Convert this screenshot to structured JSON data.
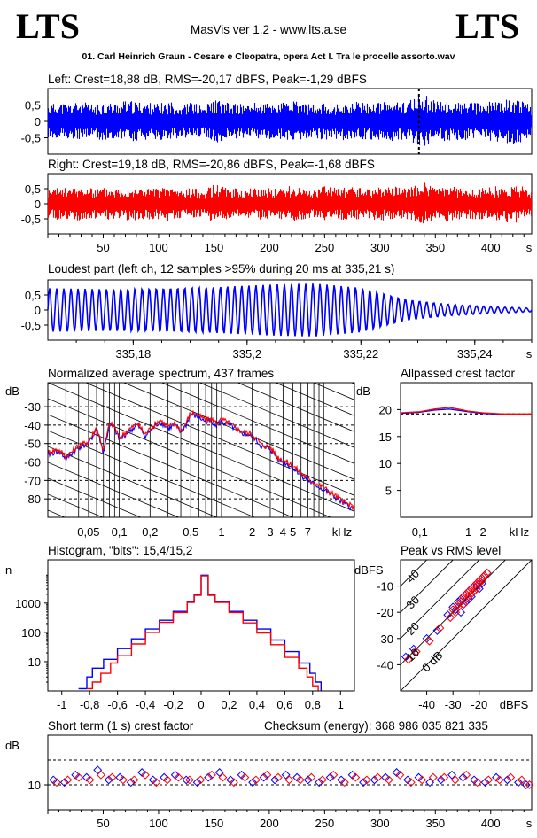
{
  "header": {
    "logo_left": "LTS",
    "logo_right": "LTS",
    "app_title": "MasVis ver 1.2 - www.lts.a.se",
    "file_title": "01. Carl Heinrich Graun - Cesare e Cleopatra, opera Act I. Tra le procelle assorto.wav"
  },
  "colors": {
    "left": "#0000ff",
    "right": "#ff0000"
  },
  "chart_data": [
    {
      "id": "left-waveform",
      "type": "area",
      "title": "Left: Crest=18,88 dB, RMS=-20,17 dBFS, Peak=-1,29 dBFS",
      "yticks": [
        "0,5",
        "0",
        "-0,5"
      ],
      "ylim": [
        -1,
        1
      ],
      "xlim": [
        0,
        437
      ],
      "marker_x": 335.21,
      "envelope": {
        "x": [
          0,
          10,
          20,
          30,
          40,
          50,
          60,
          70,
          80,
          90,
          100,
          110,
          120,
          130,
          140,
          150,
          160,
          170,
          180,
          190,
          200,
          210,
          220,
          230,
          240,
          250,
          260,
          270,
          280,
          290,
          300,
          310,
          320,
          330,
          340,
          350,
          360,
          370,
          380,
          390,
          400,
          410,
          420,
          430,
          437
        ],
        "peak": [
          0.52,
          0.58,
          0.55,
          0.62,
          0.5,
          0.6,
          0.56,
          0.65,
          0.6,
          0.58,
          0.55,
          0.62,
          0.5,
          0.6,
          0.45,
          0.7,
          0.58,
          0.55,
          0.52,
          0.6,
          0.55,
          0.58,
          0.62,
          0.6,
          0.5,
          0.62,
          0.55,
          0.58,
          0.6,
          0.56,
          0.58,
          0.62,
          0.6,
          0.7,
          0.85,
          0.6,
          0.62,
          0.58,
          0.6,
          0.55,
          0.62,
          0.65,
          0.72,
          0.6,
          0.45
        ]
      }
    },
    {
      "id": "right-waveform",
      "type": "area",
      "title": "Right: Crest=19,18 dB, RMS=-20,86 dBFS, Peak=-1,68 dBFS",
      "yticks": [
        "0,5",
        "0",
        "-0,5"
      ],
      "ylim": [
        -1,
        1
      ],
      "xlim": [
        0,
        437
      ],
      "xticks": [
        "50",
        "100",
        "150",
        "200",
        "250",
        "300",
        "350",
        "400"
      ],
      "xunit": "s",
      "envelope": {
        "x": [
          0,
          10,
          20,
          30,
          40,
          50,
          60,
          70,
          80,
          90,
          100,
          110,
          120,
          130,
          140,
          150,
          160,
          170,
          180,
          190,
          200,
          210,
          220,
          230,
          240,
          250,
          260,
          270,
          280,
          290,
          300,
          310,
          320,
          330,
          340,
          350,
          360,
          370,
          380,
          390,
          400,
          410,
          420,
          430,
          437
        ],
        "peak": [
          0.48,
          0.55,
          0.52,
          0.58,
          0.5,
          0.56,
          0.54,
          0.6,
          0.58,
          0.55,
          0.52,
          0.58,
          0.48,
          0.55,
          0.42,
          0.68,
          0.55,
          0.52,
          0.5,
          0.56,
          0.52,
          0.55,
          0.6,
          0.56,
          0.48,
          0.6,
          0.52,
          0.55,
          0.56,
          0.52,
          0.55,
          0.58,
          0.56,
          0.62,
          0.7,
          0.56,
          0.58,
          0.55,
          0.56,
          0.52,
          0.58,
          0.6,
          0.66,
          0.56,
          0.42
        ]
      }
    },
    {
      "id": "loudest-part",
      "type": "line",
      "title": "Loudest part (left  ch, 12 samples >95% during 20 ms at 335,21 s)",
      "yticks": [
        "0,5",
        "0",
        "-0,5"
      ],
      "ylim": [
        -1,
        1
      ],
      "xlim": [
        335.165,
        335.25
      ],
      "xticks": [
        "335,18",
        "335,2",
        "335,22",
        "335,24"
      ],
      "xunit": "s",
      "cycles": 68,
      "amplitude": {
        "x": [
          335.165,
          335.175,
          335.185,
          335.195,
          335.205,
          335.212,
          335.22,
          335.228,
          335.235,
          335.242,
          335.25
        ],
        "y": [
          0.72,
          0.7,
          0.74,
          0.78,
          0.85,
          0.88,
          0.75,
          0.35,
          0.2,
          0.12,
          0.06
        ]
      }
    },
    {
      "id": "avg-spectrum",
      "type": "line",
      "title": "Normalized average spectrum, 437 frames",
      "ylabel": "dB",
      "yticks": [
        "-30",
        "-40",
        "-50",
        "-60",
        "-70",
        "-80"
      ],
      "ylim": [
        -90,
        -17
      ],
      "xscale": "log",
      "xlim": [
        0.02,
        20
      ],
      "xticks": [
        "0,05",
        "0,1",
        "0,2",
        "0,5",
        "1",
        "2",
        "3",
        "4",
        "5",
        "7"
      ],
      "xunit": "kHz",
      "series": [
        {
          "color": "#0000ff",
          "x": [
            0.02,
            0.025,
            0.03,
            0.035,
            0.04,
            0.05,
            0.06,
            0.07,
            0.08,
            0.09,
            0.1,
            0.12,
            0.15,
            0.18,
            0.2,
            0.25,
            0.3,
            0.35,
            0.4,
            0.45,
            0.5,
            0.6,
            0.7,
            0.8,
            0.9,
            1.0,
            1.2,
            1.5,
            2.0,
            2.5,
            3.0,
            3.5,
            4.0,
            5.0,
            6.0,
            7.0,
            8.0,
            10.0,
            12.0,
            15.0,
            20.0
          ],
          "y": [
            -56,
            -54,
            -58,
            -55,
            -52,
            -50,
            -42,
            -55,
            -40,
            -42,
            -48,
            -44,
            -40,
            -46,
            -43,
            -38,
            -42,
            -40,
            -44,
            -40,
            -34,
            -36,
            -38,
            -38,
            -40,
            -38,
            -40,
            -44,
            -46,
            -52,
            -53,
            -58,
            -60,
            -63,
            -67,
            -70,
            -72,
            -75,
            -78,
            -82,
            -86
          ]
        },
        {
          "color": "#ff0000",
          "x": [
            0.02,
            0.025,
            0.03,
            0.035,
            0.04,
            0.05,
            0.06,
            0.07,
            0.08,
            0.09,
            0.1,
            0.12,
            0.15,
            0.18,
            0.2,
            0.25,
            0.3,
            0.35,
            0.4,
            0.45,
            0.5,
            0.6,
            0.7,
            0.8,
            0.9,
            1.0,
            1.2,
            1.5,
            2.0,
            2.5,
            3.0,
            3.5,
            4.0,
            5.0,
            6.0,
            7.0,
            8.0,
            10.0,
            12.0,
            15.0,
            20.0
          ],
          "y": [
            -55,
            -53,
            -57,
            -54,
            -51,
            -49,
            -41,
            -54,
            -39,
            -41,
            -47,
            -43,
            -39,
            -45,
            -42,
            -37,
            -41,
            -39,
            -43,
            -39,
            -33,
            -35,
            -37,
            -37,
            -39,
            -37,
            -39,
            -43,
            -45,
            -51,
            -52,
            -57,
            -59,
            -62,
            -66,
            -69,
            -71,
            -74,
            -77,
            -81,
            -85
          ]
        }
      ]
    },
    {
      "id": "allpassed-crest",
      "type": "line",
      "title": "Allpassed crest factor",
      "ylabel": "dB",
      "yticks": [
        "20",
        "15",
        "10",
        "5"
      ],
      "ylim": [
        0,
        25
      ],
      "xscale": "log",
      "xlim": [
        0.04,
        20
      ],
      "xticks": [
        "0,1",
        "1",
        "2",
        "kHz"
      ],
      "reference": 19.2,
      "series": [
        {
          "color": "#0000ff",
          "x": [
            0.04,
            0.1,
            0.2,
            0.4,
            0.7,
            1,
            2,
            5,
            10,
            20
          ],
          "y": [
            19.3,
            19.5,
            19.9,
            20.1,
            19.8,
            19.6,
            19.3,
            19.1,
            19.1,
            19.1
          ]
        },
        {
          "color": "#ff0000",
          "x": [
            0.04,
            0.1,
            0.2,
            0.4,
            0.7,
            1,
            2,
            5,
            10,
            20
          ],
          "y": [
            19.4,
            19.6,
            20.1,
            20.4,
            20.0,
            19.7,
            19.4,
            19.2,
            19.2,
            19.2
          ]
        }
      ]
    },
    {
      "id": "histogram",
      "type": "line",
      "title": "Histogram, \"bits\": 15,4/15,2",
      "ylabel": "n",
      "yscale": "log",
      "yticks": [
        "1000",
        "100",
        "10"
      ],
      "ylim": [
        1,
        30000
      ],
      "xlim": [
        -1.1,
        1.1
      ],
      "xticks": [
        "-1",
        "-0,8",
        "-0,6",
        "-0,4",
        "-0,2",
        "0",
        "0,2",
        "0,4",
        "0,6",
        "0,8",
        "1"
      ],
      "series": [
        {
          "color": "#0000ff",
          "x": [
            -0.88,
            -0.82,
            -0.78,
            -0.7,
            -0.6,
            -0.5,
            -0.4,
            -0.3,
            -0.2,
            -0.1,
            -0.05,
            0,
            0.05,
            0.1,
            0.2,
            0.3,
            0.4,
            0.5,
            0.6,
            0.7,
            0.78,
            0.82,
            0.86
          ],
          "y": [
            1.2,
            3,
            6,
            12,
            28,
            60,
            130,
            260,
            520,
            1100,
            1900,
            9000,
            1900,
            1100,
            520,
            260,
            130,
            55,
            22,
            9,
            4,
            2,
            1.2
          ]
        },
        {
          "color": "#ff0000",
          "x": [
            -0.82,
            -0.78,
            -0.72,
            -0.65,
            -0.6,
            -0.5,
            -0.4,
            -0.3,
            -0.2,
            -0.1,
            -0.05,
            0,
            0.05,
            0.1,
            0.2,
            0.3,
            0.4,
            0.5,
            0.6,
            0.7,
            0.76,
            0.8,
            0.84
          ],
          "y": [
            1.2,
            2,
            4,
            9,
            16,
            40,
            100,
            220,
            480,
            1050,
            1850,
            8500,
            1850,
            1050,
            480,
            210,
            95,
            38,
            14,
            6,
            3,
            1.5,
            1.2
          ]
        }
      ]
    },
    {
      "id": "peak-vs-rms",
      "type": "scatter",
      "title": "Peak vs RMS level",
      "ylabel": "dBFS",
      "xlabel": "dBFS",
      "yticks": [
        "-10",
        "-20",
        "-30",
        "-40"
      ],
      "xticks": [
        "-40",
        "-30",
        "-20"
      ],
      "xlim": [
        -50,
        0
      ],
      "ylim": [
        -50,
        0
      ],
      "diagonal_labels": [
        "40",
        "30",
        "20",
        "10",
        "0 dB"
      ],
      "series": [
        {
          "color": "#0000ff",
          "x": [
            -48,
            -45,
            -40,
            -36,
            -32,
            -30,
            -29,
            -28,
            -27,
            -26,
            -25,
            -24,
            -23,
            -22,
            -21,
            -20,
            -19,
            -18,
            -17,
            -26,
            -24,
            -22,
            -20,
            -23,
            -21,
            -19,
            -25,
            -27
          ],
          "y": [
            -37,
            -34,
            -30,
            -27,
            -21,
            -18,
            -19,
            -16,
            -15,
            -14,
            -13,
            -12,
            -11,
            -10,
            -9,
            -8,
            -7,
            -6,
            -5,
            -17,
            -15,
            -12,
            -11,
            -14,
            -10,
            -9,
            -16,
            -20
          ]
        },
        {
          "color": "#ff0000",
          "x": [
            -47,
            -44,
            -39,
            -35,
            -31,
            -30,
            -28,
            -27,
            -26,
            -25,
            -24,
            -23,
            -22,
            -21,
            -20,
            -19,
            -18,
            -17,
            -28,
            -25,
            -23,
            -21,
            -22,
            -20,
            -24,
            -26,
            -29,
            -19
          ],
          "y": [
            -38,
            -35,
            -31,
            -26,
            -22,
            -19,
            -17,
            -16,
            -14,
            -13,
            -12,
            -11,
            -10,
            -9,
            -8,
            -7,
            -6,
            -5,
            -18,
            -15,
            -13,
            -11,
            -12,
            -9,
            -14,
            -17,
            -20,
            -8
          ]
        }
      ]
    },
    {
      "id": "short-term-crest",
      "type": "scatter",
      "title": "Short term (1 s) crest factor",
      "checksum": "Checksum (energy):   368 986 035 821 335",
      "ylabel": "dB",
      "yticks": [
        "10"
      ],
      "ylim": [
        0,
        30
      ],
      "xlim": [
        0,
        437
      ],
      "xticks": [
        "50",
        "100",
        "150",
        "200",
        "250",
        "300",
        "350",
        "400"
      ],
      "xunit": "s",
      "series": [
        {
          "color": "#0000ff",
          "x": [
            5,
            15,
            25,
            35,
            45,
            55,
            65,
            75,
            85,
            95,
            105,
            115,
            125,
            135,
            145,
            155,
            165,
            175,
            185,
            195,
            205,
            215,
            225,
            235,
            245,
            255,
            265,
            275,
            285,
            295,
            305,
            315,
            325,
            335,
            345,
            355,
            365,
            375,
            385,
            395,
            405,
            415,
            425,
            432
          ],
          "y": [
            12,
            11,
            14,
            13,
            16,
            12,
            13,
            11,
            15,
            12,
            13,
            14,
            12,
            11,
            13,
            15,
            12,
            14,
            11,
            13,
            12,
            14,
            13,
            12,
            11,
            13,
            12,
            14,
            11,
            12,
            13,
            15,
            12,
            13,
            11,
            12,
            14,
            13,
            12,
            11,
            13,
            12,
            11,
            10
          ]
        },
        {
          "color": "#ff0000",
          "x": [
            8,
            18,
            28,
            38,
            48,
            58,
            68,
            78,
            88,
            98,
            108,
            118,
            128,
            138,
            148,
            158,
            168,
            178,
            188,
            198,
            208,
            218,
            228,
            238,
            248,
            258,
            268,
            278,
            288,
            298,
            308,
            318,
            328,
            338,
            348,
            358,
            368,
            378,
            388,
            398,
            408,
            418,
            428,
            435
          ],
          "y": [
            11,
            12,
            13,
            12,
            14,
            13,
            12,
            12,
            14,
            11,
            12,
            13,
            12,
            12,
            14,
            13,
            11,
            13,
            12,
            14,
            13,
            12,
            12,
            13,
            12,
            14,
            11,
            13,
            12,
            13,
            12,
            14,
            11,
            12,
            13,
            13,
            12,
            14,
            11,
            12,
            12,
            13,
            12,
            10
          ]
        }
      ]
    }
  ]
}
